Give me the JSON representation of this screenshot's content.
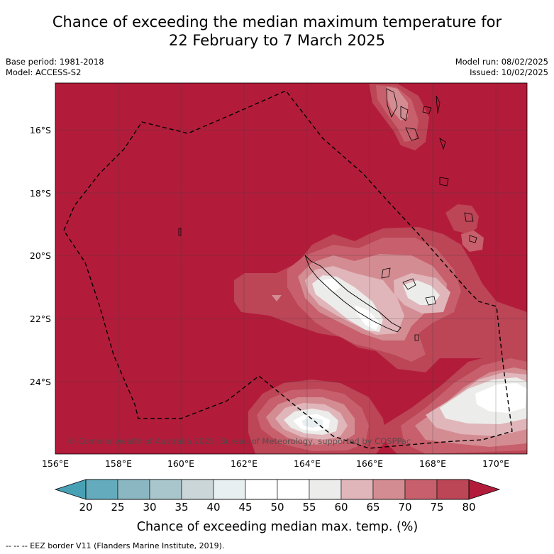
{
  "header": {
    "title_line1": "Chance of exceeding the median maximum temperature for",
    "title_line2": "22 February to 7 March 2025",
    "base_period": "Base period: 1981-2018",
    "model": "Model: ACCESS-S2",
    "model_run": "Model run: 08/02/2025",
    "issued": "Issued: 10/02/2025"
  },
  "map": {
    "lon_labels": [
      "156°E",
      "158°E",
      "160°E",
      "162°E",
      "164°E",
      "166°E",
      "168°E",
      "170°E"
    ],
    "lat_labels": [
      "16°S",
      "18°S",
      "20°S",
      "22°S",
      "24°S"
    ],
    "copyright": "© Commonwealth of Australia 2025, Bureau of Meteorology, supported by COSPPac",
    "background_color": "#b21c3a"
  },
  "colorbar": {
    "ticks": [
      "20",
      "25",
      "30",
      "35",
      "40",
      "45",
      "50",
      "55",
      "60",
      "65",
      "70",
      "75",
      "80"
    ],
    "colors": [
      "#64acbd",
      "#8ab7c2",
      "#a8c6cc",
      "#cbd6d9",
      "#e8eff1",
      "#ffffff",
      "#ffffff",
      "#ececea",
      "#e0b6ba",
      "#d48c93",
      "#c7606c",
      "#bc4556"
    ],
    "under_color": "#47a0b4",
    "over_color": "#b21c3a",
    "label": "Chance of exceeding median max. temp. (%)"
  },
  "footer": {
    "legend_text": "--  --  -- EEZ border V11 (Flanders Marine Institute, 2019)."
  }
}
